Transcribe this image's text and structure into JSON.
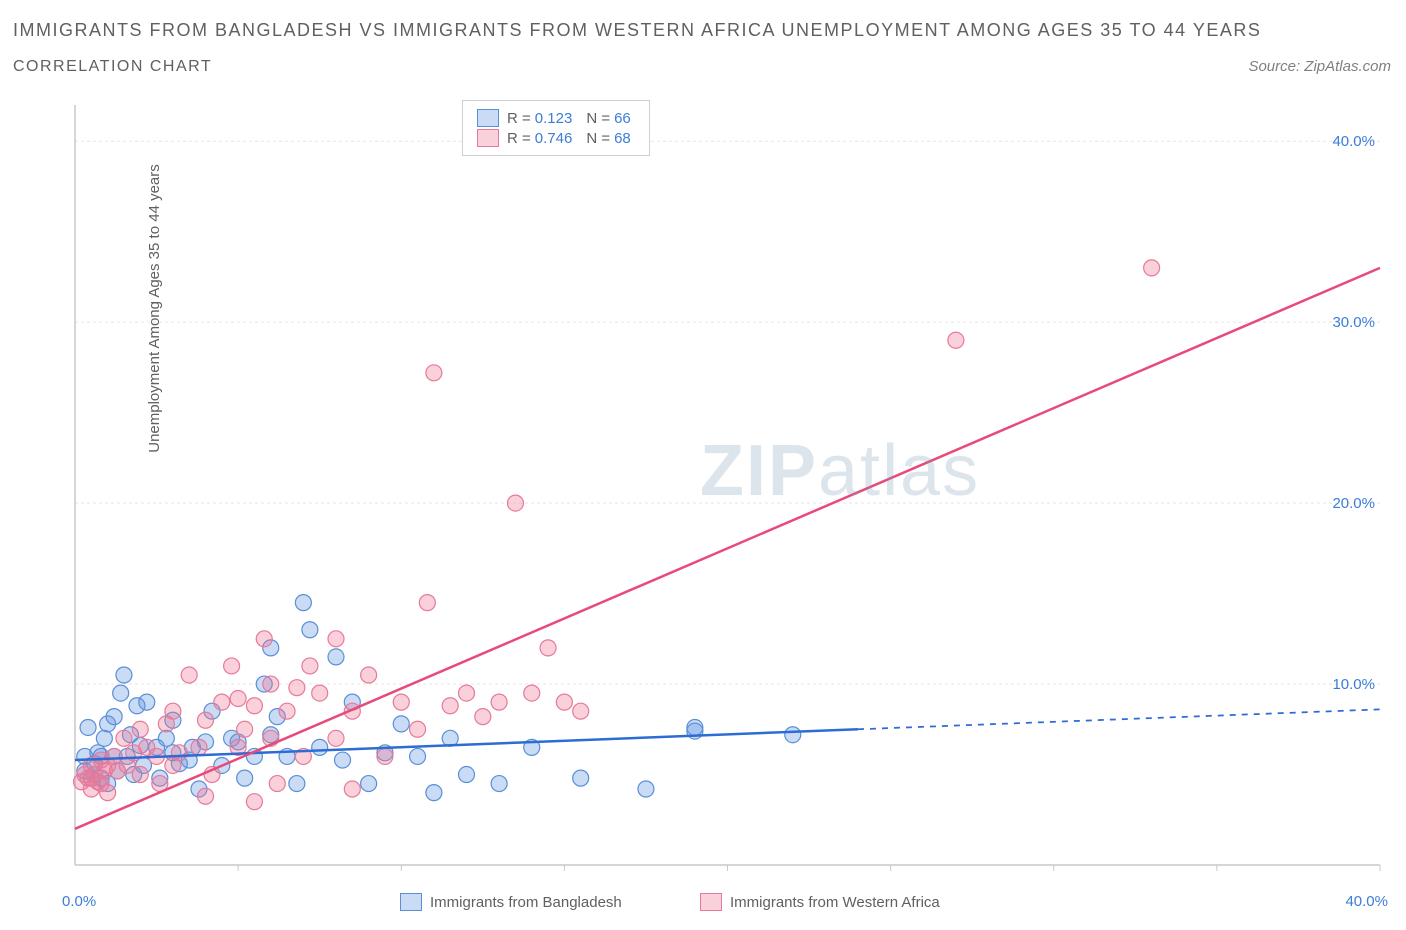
{
  "title": "IMMIGRANTS FROM BANGLADESH VS IMMIGRANTS FROM WESTERN AFRICA UNEMPLOYMENT AMONG AGES 35 TO 44 YEARS",
  "subtitle": "CORRELATION CHART",
  "source_label": "Source: ZipAtlas.com",
  "y_axis_label": "Unemployment Among Ages 35 to 44 years",
  "watermark": {
    "bold": "ZIP",
    "rest": "atlas"
  },
  "chart": {
    "type": "scatter",
    "background_color": "#ffffff",
    "grid_color": "#e5e5e5",
    "axis_line_color": "#c8c8c8",
    "xlim": [
      0,
      40
    ],
    "ylim": [
      0,
      42
    ],
    "x_ticks": [
      0,
      40
    ],
    "y_ticks": [
      10,
      20,
      30,
      40
    ],
    "x_tick_labels": [
      "0.0%",
      "40.0%"
    ],
    "y_tick_labels": [
      "10.0%",
      "20.0%",
      "30.0%",
      "40.0%"
    ],
    "x_minor_ticks": [
      5,
      10,
      15,
      20,
      25,
      30,
      35
    ],
    "series": [
      {
        "name": "Immigrants from Bangladesh",
        "color_fill": "rgba(102,153,230,0.35)",
        "color_stroke": "#5a8fd6",
        "marker_radius": 8,
        "R": 0.123,
        "N": 66,
        "regression": {
          "color": "#2d6cd2",
          "width": 2.5,
          "x1": 0,
          "y1": 5.8,
          "x2": 24,
          "y2": 7.5,
          "dash_x2": 40,
          "dash_y2": 8.6
        },
        "points": [
          [
            0.3,
            6.0
          ],
          [
            0.3,
            5.2
          ],
          [
            0.4,
            7.6
          ],
          [
            0.5,
            4.8
          ],
          [
            0.6,
            5.0
          ],
          [
            0.6,
            5.6
          ],
          [
            0.7,
            6.2
          ],
          [
            0.8,
            4.8
          ],
          [
            0.8,
            6.0
          ],
          [
            0.9,
            7.0
          ],
          [
            1.0,
            4.5
          ],
          [
            1.0,
            7.8
          ],
          [
            1.2,
            6.0
          ],
          [
            1.2,
            8.2
          ],
          [
            1.3,
            5.2
          ],
          [
            1.4,
            9.5
          ],
          [
            1.5,
            10.5
          ],
          [
            1.6,
            6.0
          ],
          [
            1.7,
            7.2
          ],
          [
            1.8,
            5.0
          ],
          [
            1.9,
            8.8
          ],
          [
            2.0,
            6.6
          ],
          [
            2.1,
            5.5
          ],
          [
            2.2,
            9.0
          ],
          [
            2.5,
            6.5
          ],
          [
            2.6,
            4.8
          ],
          [
            2.8,
            7.0
          ],
          [
            3.0,
            6.2
          ],
          [
            3.0,
            8.0
          ],
          [
            3.2,
            5.6
          ],
          [
            3.5,
            5.8
          ],
          [
            3.6,
            6.5
          ],
          [
            3.8,
            4.2
          ],
          [
            4.0,
            6.8
          ],
          [
            4.2,
            8.5
          ],
          [
            4.5,
            5.5
          ],
          [
            4.8,
            7.0
          ],
          [
            5.0,
            6.8
          ],
          [
            5.2,
            4.8
          ],
          [
            5.5,
            6.0
          ],
          [
            5.8,
            10.0
          ],
          [
            6.0,
            7.2
          ],
          [
            6.0,
            12.0
          ],
          [
            6.2,
            8.2
          ],
          [
            6.5,
            6.0
          ],
          [
            6.8,
            4.5
          ],
          [
            7.0,
            14.5
          ],
          [
            7.2,
            13.0
          ],
          [
            7.5,
            6.5
          ],
          [
            8.0,
            11.5
          ],
          [
            8.2,
            5.8
          ],
          [
            8.5,
            9.0
          ],
          [
            9.0,
            4.5
          ],
          [
            9.5,
            6.2
          ],
          [
            10.0,
            7.8
          ],
          [
            10.5,
            6.0
          ],
          [
            11.0,
            4.0
          ],
          [
            11.5,
            7.0
          ],
          [
            12.0,
            5.0
          ],
          [
            13.0,
            4.5
          ],
          [
            14.0,
            6.5
          ],
          [
            15.5,
            4.8
          ],
          [
            17.5,
            4.2
          ],
          [
            19.0,
            7.4
          ],
          [
            22.0,
            7.2
          ],
          [
            19.0,
            7.6
          ]
        ]
      },
      {
        "name": "Immigrants from Western Africa",
        "color_fill": "rgba(240,120,150,0.35)",
        "color_stroke": "#e67a9a",
        "marker_radius": 8,
        "R": 0.746,
        "N": 68,
        "regression": {
          "color": "#e84a7a",
          "width": 2.5,
          "x1": 0,
          "y1": 2.0,
          "x2": 40,
          "y2": 33.0
        },
        "points": [
          [
            0.2,
            4.6
          ],
          [
            0.3,
            5.0
          ],
          [
            0.4,
            4.8
          ],
          [
            0.5,
            5.5
          ],
          [
            0.5,
            4.2
          ],
          [
            0.6,
            5.0
          ],
          [
            0.7,
            4.6
          ],
          [
            0.8,
            5.8
          ],
          [
            0.8,
            4.5
          ],
          [
            0.9,
            5.2
          ],
          [
            1.0,
            5.5
          ],
          [
            1.0,
            4.0
          ],
          [
            1.2,
            6.0
          ],
          [
            1.3,
            5.2
          ],
          [
            1.5,
            7.0
          ],
          [
            1.6,
            5.5
          ],
          [
            1.8,
            6.2
          ],
          [
            2.0,
            5.0
          ],
          [
            2.0,
            7.5
          ],
          [
            2.2,
            6.5
          ],
          [
            2.5,
            6.0
          ],
          [
            2.6,
            4.5
          ],
          [
            2.8,
            7.8
          ],
          [
            3.0,
            5.5
          ],
          [
            3.0,
            8.5
          ],
          [
            3.2,
            6.2
          ],
          [
            3.5,
            10.5
          ],
          [
            3.8,
            6.5
          ],
          [
            4.0,
            8.0
          ],
          [
            4.2,
            5.0
          ],
          [
            4.5,
            9.0
          ],
          [
            4.8,
            11.0
          ],
          [
            5.0,
            6.5
          ],
          [
            5.0,
            9.2
          ],
          [
            5.2,
            7.5
          ],
          [
            5.5,
            8.8
          ],
          [
            5.8,
            12.5
          ],
          [
            6.0,
            7.0
          ],
          [
            6.0,
            10.0
          ],
          [
            6.2,
            4.5
          ],
          [
            6.5,
            8.5
          ],
          [
            6.8,
            9.8
          ],
          [
            7.0,
            6.0
          ],
          [
            7.2,
            11.0
          ],
          [
            7.5,
            9.5
          ],
          [
            8.0,
            7.0
          ],
          [
            8.0,
            12.5
          ],
          [
            8.5,
            8.5
          ],
          [
            9.0,
            10.5
          ],
          [
            9.5,
            6.0
          ],
          [
            10.0,
            9.0
          ],
          [
            10.5,
            7.5
          ],
          [
            10.8,
            14.5
          ],
          [
            11.0,
            27.2
          ],
          [
            11.5,
            8.8
          ],
          [
            12.0,
            9.5
          ],
          [
            12.5,
            8.2
          ],
          [
            13.0,
            9.0
          ],
          [
            13.5,
            20.0
          ],
          [
            14.0,
            9.5
          ],
          [
            14.5,
            12.0
          ],
          [
            15.0,
            9.0
          ],
          [
            15.5,
            8.5
          ],
          [
            27.0,
            29.0
          ],
          [
            33.0,
            33.0
          ],
          [
            4.0,
            3.8
          ],
          [
            5.5,
            3.5
          ],
          [
            8.5,
            4.2
          ]
        ]
      }
    ]
  },
  "bottom_legend": [
    {
      "label": "Immigrants from Bangladesh",
      "fill": "rgba(102,153,230,0.35)",
      "stroke": "#5a8fd6"
    },
    {
      "label": "Immigrants from Western Africa",
      "fill": "rgba(240,120,150,0.35)",
      "stroke": "#e67a9a"
    }
  ]
}
